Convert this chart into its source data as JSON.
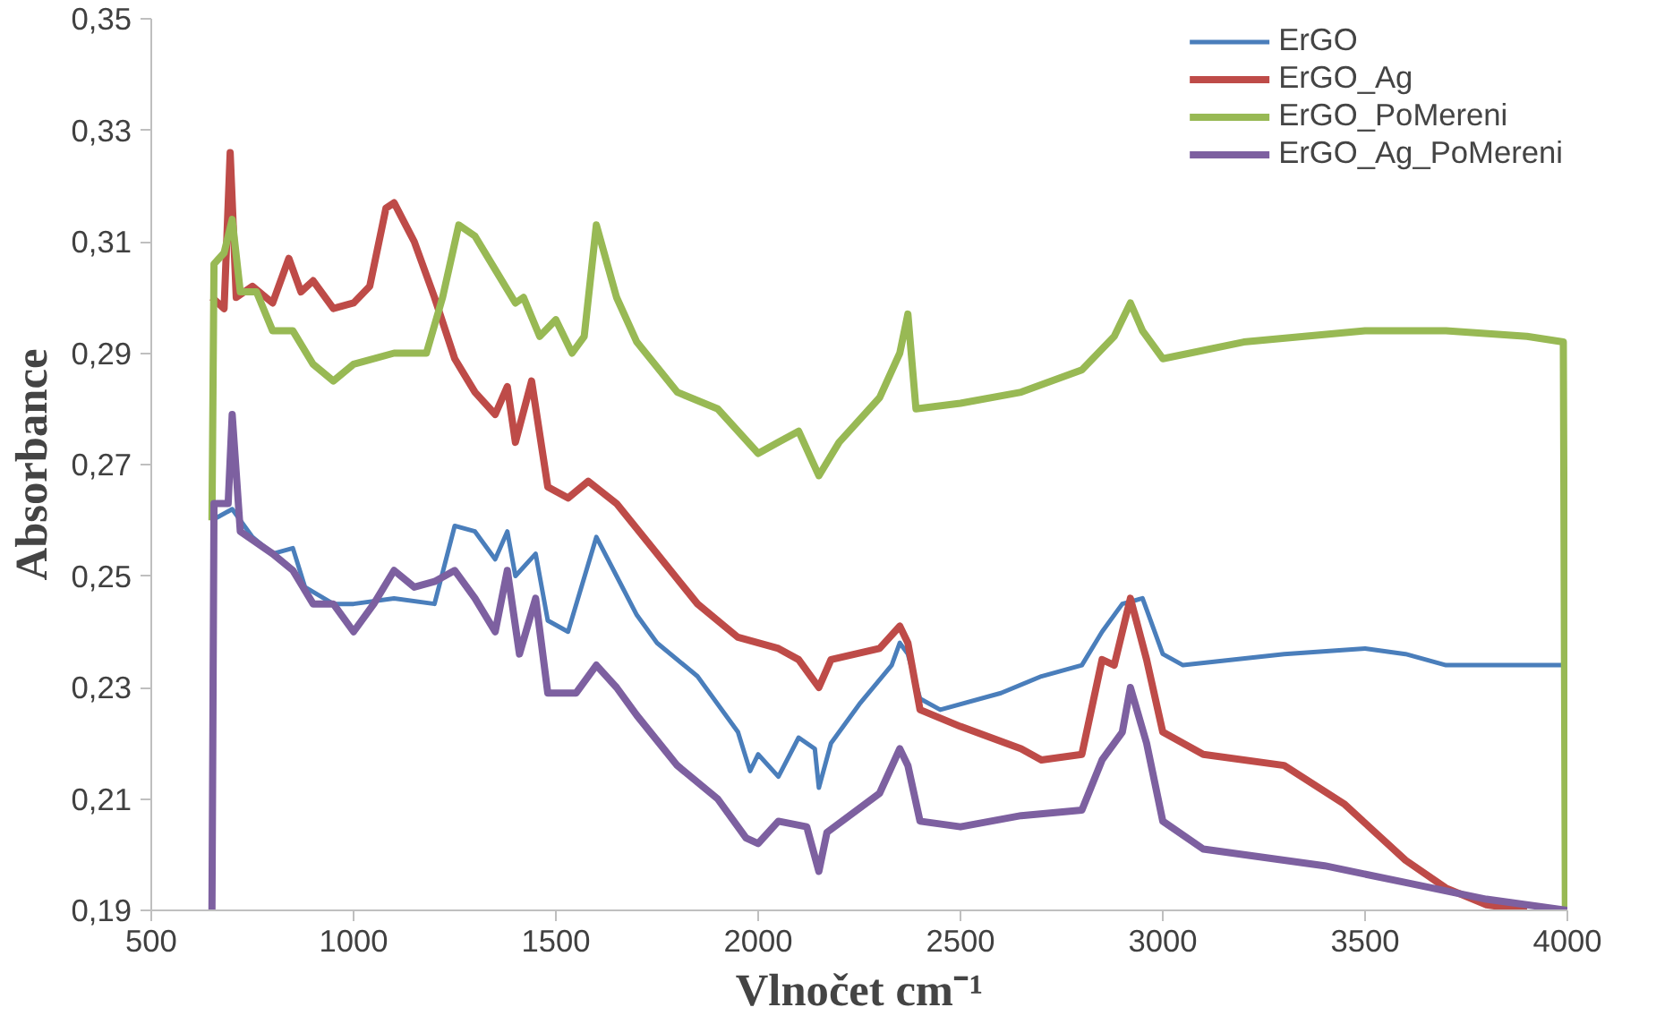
{
  "chart_data": {
    "type": "line",
    "xlabel": "Vlnočet cm⁻¹",
    "ylabel": "Absorbance",
    "xlim": [
      500,
      4000
    ],
    "xticks": [
      500,
      1000,
      1500,
      2000,
      2500,
      3000,
      3500,
      4000
    ],
    "ylim": [
      0.19,
      0.35
    ],
    "yticks": [
      {
        "value": 0.19,
        "label": "0,19"
      },
      {
        "value": 0.21,
        "label": "0,21"
      },
      {
        "value": 0.23,
        "label": "0,23"
      },
      {
        "value": 0.25,
        "label": "0,25"
      },
      {
        "value": 0.27,
        "label": "0,27"
      },
      {
        "value": 0.29,
        "label": "0,29"
      },
      {
        "value": 0.31,
        "label": "0,31"
      },
      {
        "value": 0.33,
        "label": "0,33"
      },
      {
        "value": 0.35,
        "label": "0,35"
      }
    ],
    "grid": false,
    "legend": "top right",
    "marker": "none",
    "line_style": "solid",
    "series": [
      {
        "name": "ErGO",
        "color": "#4a7ebb",
        "x": [
          650,
          700,
          750,
          800,
          850,
          880,
          950,
          1000,
          1100,
          1200,
          1250,
          1300,
          1350,
          1380,
          1400,
          1450,
          1480,
          1530,
          1600,
          1650,
          1700,
          1750,
          1850,
          1950,
          1980,
          2000,
          2050,
          2100,
          2140,
          2150,
          2180,
          2250,
          2330,
          2350,
          2370,
          2400,
          2450,
          2600,
          2700,
          2800,
          2850,
          2900,
          2950,
          3000,
          3050,
          3300,
          3500,
          3600,
          3700,
          3800,
          3900,
          3990
        ],
        "values": [
          0.26,
          0.262,
          0.257,
          0.254,
          0.255,
          0.248,
          0.245,
          0.245,
          0.246,
          0.245,
          0.259,
          0.258,
          0.253,
          0.258,
          0.25,
          0.254,
          0.242,
          0.24,
          0.257,
          0.25,
          0.243,
          0.238,
          0.232,
          0.222,
          0.215,
          0.218,
          0.214,
          0.221,
          0.219,
          0.212,
          0.22,
          0.227,
          0.234,
          0.238,
          0.236,
          0.228,
          0.226,
          0.229,
          0.232,
          0.234,
          0.24,
          0.245,
          0.246,
          0.236,
          0.234,
          0.236,
          0.237,
          0.236,
          0.234,
          0.234,
          0.234,
          0.234
        ]
      },
      {
        "name": "ErGO_Ag",
        "color": "#be4b48",
        "x": [
          650,
          680,
          695,
          710,
          750,
          800,
          840,
          870,
          900,
          950,
          1000,
          1040,
          1080,
          1100,
          1150,
          1200,
          1250,
          1300,
          1350,
          1380,
          1400,
          1440,
          1480,
          1530,
          1580,
          1650,
          1750,
          1850,
          1950,
          2050,
          2100,
          2150,
          2180,
          2300,
          2350,
          2370,
          2400,
          2500,
          2650,
          2700,
          2800,
          2850,
          2880,
          2920,
          2960,
          3000,
          3100,
          3300,
          3450,
          3600,
          3700,
          3800,
          3900
        ],
        "values": [
          0.3,
          0.298,
          0.326,
          0.3,
          0.302,
          0.299,
          0.307,
          0.301,
          0.303,
          0.298,
          0.299,
          0.302,
          0.316,
          0.317,
          0.31,
          0.3,
          0.289,
          0.283,
          0.279,
          0.284,
          0.274,
          0.285,
          0.266,
          0.264,
          0.267,
          0.263,
          0.254,
          0.245,
          0.239,
          0.237,
          0.235,
          0.23,
          0.235,
          0.237,
          0.241,
          0.238,
          0.226,
          0.223,
          0.219,
          0.217,
          0.218,
          0.235,
          0.234,
          0.246,
          0.235,
          0.222,
          0.218,
          0.216,
          0.209,
          0.199,
          0.194,
          0.191,
          0.19
        ]
      },
      {
        "name": "ErGO_PoMereni",
        "color": "#98b954",
        "x": [
          650,
          655,
          680,
          700,
          720,
          760,
          800,
          850,
          900,
          950,
          1000,
          1100,
          1180,
          1220,
          1260,
          1300,
          1350,
          1400,
          1420,
          1460,
          1500,
          1540,
          1570,
          1600,
          1650,
          1700,
          1800,
          1900,
          2000,
          2050,
          2100,
          2150,
          2200,
          2300,
          2350,
          2370,
          2390,
          2500,
          2650,
          2800,
          2880,
          2920,
          2950,
          3000,
          3200,
          3500,
          3700,
          3900,
          3990,
          3995
        ],
        "values": [
          0.26,
          0.306,
          0.308,
          0.314,
          0.301,
          0.301,
          0.294,
          0.294,
          0.288,
          0.285,
          0.288,
          0.29,
          0.29,
          0.3,
          0.313,
          0.311,
          0.305,
          0.299,
          0.3,
          0.293,
          0.296,
          0.29,
          0.293,
          0.313,
          0.3,
          0.292,
          0.283,
          0.28,
          0.272,
          0.274,
          0.276,
          0.268,
          0.274,
          0.282,
          0.29,
          0.297,
          0.28,
          0.281,
          0.283,
          0.287,
          0.293,
          0.299,
          0.294,
          0.289,
          0.292,
          0.294,
          0.294,
          0.293,
          0.292,
          0.19
        ]
      },
      {
        "name": "ErGO_Ag_PoMereni",
        "color": "#7d60a0",
        "x": [
          650,
          655,
          690,
          700,
          720,
          800,
          850,
          900,
          950,
          1000,
          1050,
          1100,
          1150,
          1200,
          1250,
          1300,
          1350,
          1380,
          1410,
          1450,
          1480,
          1550,
          1600,
          1650,
          1700,
          1800,
          1900,
          1970,
          2000,
          2050,
          2120,
          2150,
          2170,
          2300,
          2350,
          2370,
          2400,
          2500,
          2650,
          2800,
          2850,
          2900,
          2920,
          2960,
          3000,
          3100,
          3400,
          3600,
          3800,
          4000
        ],
        "values": [
          0.19,
          0.263,
          0.263,
          0.279,
          0.258,
          0.254,
          0.251,
          0.245,
          0.245,
          0.24,
          0.245,
          0.251,
          0.248,
          0.249,
          0.251,
          0.246,
          0.24,
          0.251,
          0.236,
          0.246,
          0.229,
          0.229,
          0.234,
          0.23,
          0.225,
          0.216,
          0.21,
          0.203,
          0.202,
          0.206,
          0.205,
          0.197,
          0.204,
          0.211,
          0.219,
          0.216,
          0.206,
          0.205,
          0.207,
          0.208,
          0.217,
          0.222,
          0.23,
          0.22,
          0.206,
          0.201,
          0.198,
          0.195,
          0.192,
          0.19
        ]
      }
    ]
  }
}
